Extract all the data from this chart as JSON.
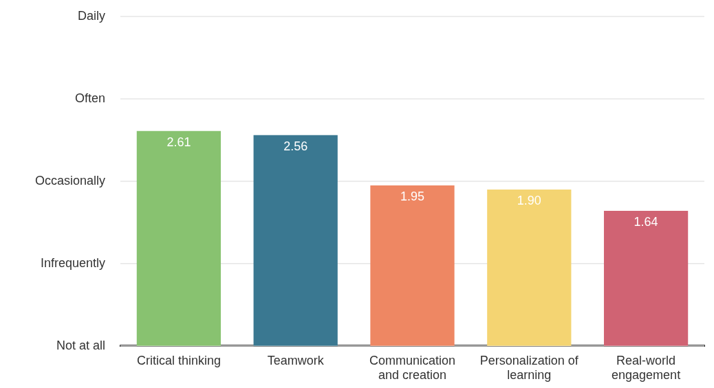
{
  "chart_data": {
    "type": "bar",
    "categories": [
      "Critical thinking",
      "Teamwork",
      "Communication and creation",
      "Personalization of learning",
      "Real-world engagement"
    ],
    "values": [
      2.61,
      2.56,
      1.95,
      1.9,
      1.64
    ],
    "value_labels": [
      "2.61",
      "2.56",
      "1.95",
      "1.90",
      "1.64"
    ],
    "colors": [
      "#88c270",
      "#3a7891",
      "#ee8763",
      "#f4d472",
      "#d06373"
    ],
    "ylim": [
      0,
      4
    ],
    "ref_lines": [
      {
        "axis": "y",
        "value": 0,
        "label": "Not at all",
        "color": "#e6e6e6"
      },
      {
        "axis": "y",
        "value": 1,
        "label": "Infrequently",
        "color": "#e6e6e6"
      },
      {
        "axis": "y",
        "value": 2,
        "label": "Occasionally",
        "color": "#e6e6e6"
      },
      {
        "axis": "y",
        "value": 3,
        "label": "Often",
        "color": "#e6e6e6"
      },
      {
        "axis": "y",
        "value": 4,
        "label": "Daily",
        "color": "#e6e6e6"
      }
    ]
  }
}
